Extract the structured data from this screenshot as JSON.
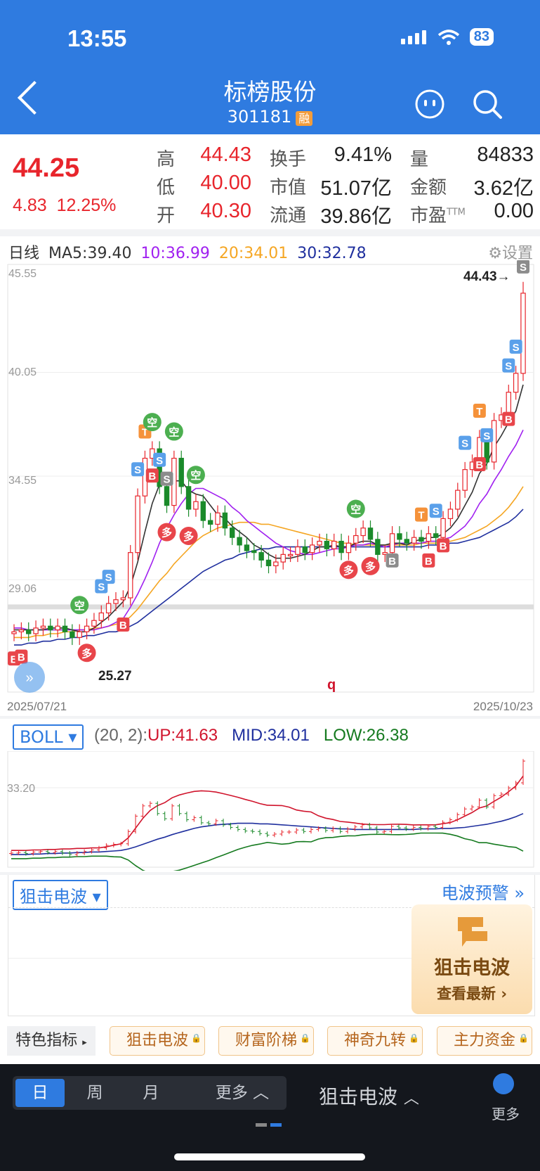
{
  "status": {
    "time": "13:55",
    "battery": "83"
  },
  "header": {
    "title": "标榜股份",
    "code": "301181",
    "tag": "融"
  },
  "quote": {
    "price": "44.25",
    "change": "4.83",
    "change_pct": "12.25%",
    "stats": [
      {
        "label": "高",
        "value": "44.43"
      },
      {
        "label": "换手",
        "value": "9.41%"
      },
      {
        "label": "量",
        "value": "84833"
      },
      {
        "label": "低",
        "value": "40.00"
      },
      {
        "label": "市值",
        "value": "51.07亿"
      },
      {
        "label": "金额",
        "value": "3.62亿"
      },
      {
        "label": "开",
        "value": "40.30"
      },
      {
        "label": "流通",
        "value": "39.86亿"
      },
      {
        "label": "市盈",
        "value": "0.00"
      }
    ],
    "pe_sup": "TTM"
  },
  "ma": {
    "period": "日线",
    "ma5": "MA5:39.40",
    "ma10": "10:36.99",
    "ma20": "20:34.01",
    "ma30": "30:32.78",
    "settings": "设置",
    "colors": {
      "ma5": "#333333",
      "ma10": "#a020f0",
      "ma20": "#f5a623",
      "ma30": "#1f2f9e"
    }
  },
  "chart_data": [
    {
      "type": "candlestick",
      "y_ticks": [
        "45.55",
        "40.05",
        "34.55",
        "29.06"
      ],
      "ylim": [
        24.0,
        45.55
      ],
      "x_start": "2025/07/21",
      "x_end": "2025/10/23",
      "high_label": "44.43→",
      "low_label": "25.27",
      "annotation": "q",
      "closes": [
        26.3,
        26.4,
        26.2,
        26.5,
        26.6,
        26.4,
        26.6,
        26.3,
        26.0,
        26.3,
        26.6,
        26.9,
        27.3,
        27.8,
        28.0,
        28.1,
        30.5,
        33.5,
        35.5,
        36.0,
        34.0,
        33.0,
        35.5,
        34.0,
        32.8,
        33.2,
        32.2,
        32.0,
        32.6,
        31.8,
        31.3,
        30.9,
        30.6,
        30.5,
        30.1,
        29.8,
        30.0,
        30.4,
        30.4,
        30.8,
        30.5,
        30.9,
        31.1,
        30.7,
        31.1,
        30.5,
        31.0,
        31.4,
        31.8,
        31.2,
        30.4,
        30.5,
        31.5,
        31.2,
        31.0,
        31.3,
        31.1,
        31.5,
        31.3,
        32.3,
        32.8,
        33.8,
        34.9,
        35.3,
        36.6,
        35.3,
        37.5,
        37.8,
        39.0,
        40.0,
        44.25
      ],
      "ma5": [
        26.4,
        26.4,
        26.4,
        26.4,
        26.4,
        26.5,
        26.5,
        26.5,
        26.4,
        26.3,
        26.3,
        26.5,
        26.8,
        27.1,
        27.5,
        27.9,
        28.7,
        30.0,
        31.6,
        33.1,
        34.1,
        34.2,
        34.3,
        34.3,
        33.8,
        33.6,
        33.5,
        33.0,
        32.5,
        32.3,
        31.9,
        31.6,
        31.3,
        30.9,
        30.7,
        30.4,
        30.2,
        30.2,
        30.2,
        30.3,
        30.4,
        30.6,
        30.8,
        30.8,
        30.9,
        30.8,
        30.8,
        31.0,
        31.1,
        31.1,
        30.9,
        30.9,
        31.0,
        31.0,
        30.9,
        31.1,
        31.2,
        31.3,
        31.3,
        31.5,
        31.8,
        32.3,
        33.0,
        33.7,
        34.7,
        35.2,
        36.1,
        36.7,
        37.4,
        38.0,
        39.4
      ],
      "ma10": [
        26.5,
        26.5,
        26.4,
        26.4,
        26.4,
        26.4,
        26.4,
        26.4,
        26.4,
        26.4,
        26.4,
        26.4,
        26.5,
        26.6,
        26.8,
        27.0,
        27.6,
        28.3,
        29.1,
        30.0,
        31.0,
        31.8,
        32.5,
        33.1,
        33.6,
        33.9,
        33.9,
        33.7,
        33.5,
        33.3,
        32.9,
        32.6,
        32.2,
        31.9,
        31.6,
        31.3,
        31.0,
        30.8,
        30.6,
        30.5,
        30.4,
        30.4,
        30.5,
        30.6,
        30.7,
        30.7,
        30.8,
        30.9,
        30.9,
        31.0,
        30.9,
        30.8,
        30.9,
        31.0,
        31.0,
        31.0,
        31.0,
        31.1,
        31.1,
        31.2,
        31.3,
        31.6,
        31.9,
        32.4,
        33.1,
        33.6,
        34.3,
        34.9,
        35.6,
        36.2,
        37.0
      ],
      "ma20": [
        26.0,
        26.0,
        26.0,
        26.1,
        26.1,
        26.2,
        26.2,
        26.3,
        26.3,
        26.4,
        26.4,
        26.5,
        26.5,
        26.6,
        26.7,
        26.8,
        27.1,
        27.5,
        28.0,
        28.5,
        29.0,
        29.4,
        29.9,
        30.3,
        30.7,
        31.1,
        31.4,
        31.6,
        31.8,
        31.9,
        32.0,
        32.1,
        32.1,
        32.1,
        32.0,
        32.0,
        31.9,
        31.8,
        31.7,
        31.6,
        31.5,
        31.4,
        31.3,
        31.2,
        31.1,
        31.0,
        31.0,
        30.9,
        30.9,
        30.9,
        30.9,
        30.9,
        30.9,
        30.9,
        30.9,
        30.9,
        31.0,
        31.0,
        31.0,
        31.1,
        31.1,
        31.2,
        31.3,
        31.5,
        31.7,
        31.9,
        32.2,
        32.5,
        32.9,
        33.4,
        34.0
      ],
      "ma30": [
        25.6,
        25.6,
        25.7,
        25.7,
        25.8,
        25.8,
        25.9,
        25.9,
        26.0,
        26.0,
        26.1,
        26.1,
        26.2,
        26.3,
        26.3,
        26.4,
        26.6,
        26.8,
        27.1,
        27.4,
        27.7,
        28.0,
        28.3,
        28.6,
        28.9,
        29.2,
        29.5,
        29.7,
        29.9,
        30.1,
        30.2,
        30.4,
        30.5,
        30.6,
        30.7,
        30.7,
        30.8,
        30.8,
        30.8,
        30.8,
        30.8,
        30.8,
        30.8,
        30.8,
        30.8,
        30.8,
        30.8,
        30.8,
        30.8,
        30.8,
        30.8,
        30.8,
        30.8,
        30.8,
        30.8,
        30.8,
        30.8,
        30.9,
        30.9,
        30.9,
        31.0,
        31.0,
        31.1,
        31.2,
        31.3,
        31.5,
        31.7,
        31.9,
        32.1,
        32.4,
        32.8
      ],
      "signals": [
        {
          "label": "T",
          "color": "#f5923a",
          "index": 18
        },
        {
          "label": "S",
          "color": "#5aa0ea",
          "index": 17
        },
        {
          "label": "S",
          "color": "#5aa0ea",
          "index": 20
        },
        {
          "label": "S",
          "color": "#8c8c8c",
          "index": 21
        },
        {
          "label": "S",
          "color": "#5aa0ea",
          "index": 12
        },
        {
          "label": "S",
          "color": "#5aa0ea",
          "index": 13
        },
        {
          "label": "S",
          "color": "#5aa0ea",
          "index": 58
        },
        {
          "label": "S",
          "color": "#5aa0ea",
          "index": 62
        },
        {
          "label": "S",
          "color": "#5aa0ea",
          "index": 65
        },
        {
          "label": "S",
          "color": "#5aa0ea",
          "index": 68
        },
        {
          "label": "S",
          "color": "#5aa0ea",
          "index": 69
        },
        {
          "label": "S",
          "color": "#8c8c8c",
          "index": 70
        },
        {
          "label": "T",
          "color": "#f5923a",
          "index": 56
        },
        {
          "label": "T",
          "color": "#f5923a",
          "index": 64
        },
        {
          "label": "空",
          "color": "#4caf50",
          "index": 19
        },
        {
          "label": "空",
          "color": "#4caf50",
          "index": 22
        },
        {
          "label": "空",
          "color": "#4caf50",
          "index": 25
        },
        {
          "label": "空",
          "color": "#4caf50",
          "index": 9
        },
        {
          "label": "空",
          "color": "#4caf50",
          "index": 47
        },
        {
          "label": "多",
          "color": "#e8454a",
          "index": 21
        },
        {
          "label": "多",
          "color": "#e8454a",
          "index": 24
        },
        {
          "label": "多",
          "color": "#e8454a",
          "index": 10
        },
        {
          "label": "多",
          "color": "#e8454a",
          "index": 46
        },
        {
          "label": "多",
          "color": "#e8454a",
          "index": 49
        },
        {
          "label": "B",
          "color": "#e8454a",
          "index": 19
        },
        {
          "label": "B",
          "color": "#e8454a",
          "index": 15
        },
        {
          "label": "B",
          "color": "#e8454a",
          "index": 57
        },
        {
          "label": "B",
          "color": "#e8454a",
          "index": 59
        },
        {
          "label": "B",
          "color": "#e8454a",
          "index": 64
        },
        {
          "label": "B",
          "color": "#e8454a",
          "index": 68
        },
        {
          "label": "B",
          "color": "#8c8c8c",
          "index": 52
        },
        {
          "label": "B",
          "color": "#e8454a",
          "index": 0
        },
        {
          "label": "B",
          "color": "#e8454a",
          "index": 1
        }
      ]
    },
    {
      "type": "line",
      "name": "BOLL",
      "params": "(20, 2):",
      "up_label": "UP:41.63",
      "mid_label": "MID:34.01",
      "low_label": "LOW:26.38",
      "y_tick": "33.20",
      "colors": {
        "up": "#d0142c",
        "mid": "#1f2f9e",
        "low": "#157a1f"
      }
    }
  ],
  "boll": {
    "selector": "BOLL"
  },
  "indicator": {
    "selector": "狙击电波",
    "warning": "电波预警",
    "promo_title": "狙击电波",
    "promo_sub": "查看最新"
  },
  "features": {
    "label": "特色指标",
    "buttons": [
      "狙击电波",
      "财富阶梯",
      "神奇九转",
      "主力资金"
    ]
  },
  "bottom": {
    "periods": [
      "日",
      "周",
      "月",
      "更多"
    ],
    "active": "日",
    "indicator": "狙击电波",
    "more": "更多"
  }
}
